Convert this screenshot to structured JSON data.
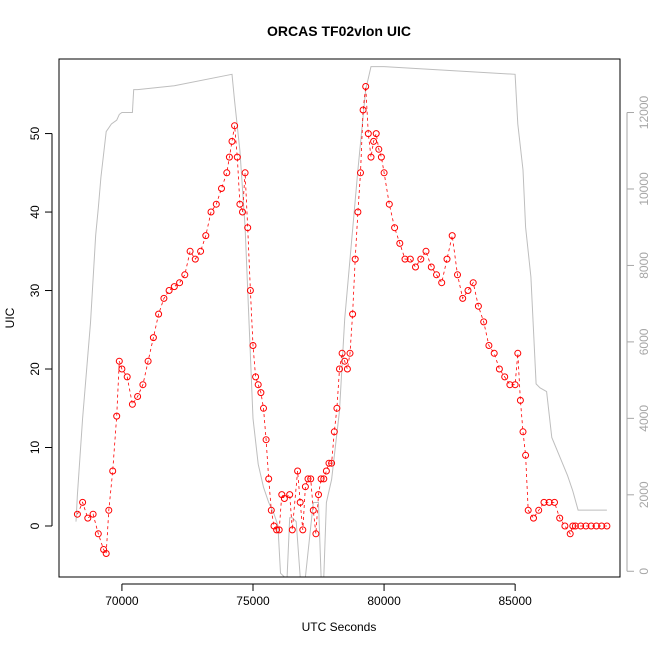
{
  "chart_data": {
    "type": "scatter",
    "title": "ORCAS TF02vlon UIC",
    "xlabel": "UTC Seconds",
    "ylabel": "UIC",
    "xlim": [
      67600,
      89000
    ],
    "ylim": [
      -6.5,
      59.5
    ],
    "y2lim": [
      -150,
      13400
    ],
    "x_ticks": [
      70000,
      75000,
      80000,
      85000
    ],
    "y_ticks": [
      0,
      10,
      20,
      30,
      40,
      50
    ],
    "y2_ticks": [
      0,
      2000,
      4000,
      6000,
      8000,
      10000,
      12000
    ],
    "colors": {
      "uic": "#ff0000",
      "altitude": "#bebebe",
      "axis": "#000000",
      "axis2": "#a6a6a6"
    },
    "series": [
      {
        "name": "",
        "role": "uic-scatter",
        "x": [
          68300,
          68500,
          68700,
          68900,
          69100,
          69300,
          69400,
          69500,
          69650,
          69800,
          69900,
          70000,
          70200,
          70400,
          70600,
          70800,
          71000,
          71200,
          71400,
          71600,
          71800,
          72000,
          72200,
          72400,
          72600,
          72800,
          73000,
          73200,
          73400,
          73600,
          73800,
          74000,
          74100,
          74200,
          74300,
          74400,
          74500,
          74600,
          74700,
          74800,
          74900,
          75000,
          75100,
          75200,
          75300,
          75400,
          75500,
          75600,
          75700,
          75800,
          75900,
          76000,
          76100,
          76200,
          76400,
          76500,
          76700,
          76800,
          76900,
          77000,
          77100,
          77200,
          77300,
          77400,
          77500,
          77600,
          77700,
          77800,
          77900,
          78000,
          78100,
          78200,
          78300,
          78400,
          78500,
          78600,
          78700,
          78800,
          78900,
          79000,
          79100,
          79200,
          79300,
          79400,
          79500,
          79600,
          79700,
          79800,
          79900,
          80000,
          80200,
          80400,
          80600,
          80800,
          81000,
          81200,
          81400,
          81600,
          81800,
          82000,
          82200,
          82400,
          82600,
          82800,
          83000,
          83200,
          83400,
          83600,
          83800,
          84000,
          84200,
          84400,
          84600,
          84800,
          85000,
          85100,
          85200,
          85300,
          85400,
          85500,
          85700,
          85900,
          86100,
          86300,
          86500,
          86700,
          86900,
          87100,
          87200,
          87300,
          87500,
          87700,
          87900,
          88100,
          88300,
          88500
        ],
        "y": [
          1.5,
          3,
          1,
          1.5,
          -1,
          -3,
          -3.5,
          2,
          7,
          14,
          21,
          20,
          19,
          15.5,
          16.5,
          18,
          21,
          24,
          27,
          29,
          30,
          30.5,
          31,
          32,
          35,
          34,
          35,
          37,
          40,
          41,
          43,
          45,
          47,
          49,
          51,
          47,
          41,
          40,
          45,
          38,
          30,
          23,
          19,
          18,
          17,
          15,
          11,
          6,
          2,
          0,
          -0.5,
          -0.5,
          4,
          3.5,
          4,
          -0.5,
          7,
          3,
          -0.5,
          5,
          6,
          6,
          2,
          -1,
          4,
          6,
          6,
          7,
          8,
          8,
          12,
          15,
          20,
          22,
          21,
          20,
          22,
          27,
          34,
          40,
          45,
          53,
          56,
          50,
          47,
          49,
          50,
          48,
          47,
          45,
          41,
          38,
          36,
          34,
          34,
          33,
          34,
          35,
          33,
          32,
          31,
          34,
          37,
          32,
          29,
          30,
          31,
          28,
          26,
          23,
          22,
          20,
          19,
          18,
          18,
          22,
          16,
          12,
          9,
          2,
          1,
          2,
          3,
          3,
          3,
          1,
          0,
          -1,
          0,
          0,
          0,
          0,
          0,
          0,
          0,
          0
        ]
      },
      {
        "name": "",
        "role": "altitude-line",
        "x": [
          68250,
          68300,
          68500,
          68800,
          69000,
          69100,
          69200,
          69400,
          69600,
          69800,
          69900,
          70000,
          70100,
          70200,
          70400,
          70450,
          70600,
          72000,
          74200,
          74300,
          74500,
          74700,
          75000,
          75200,
          75400,
          75600,
          75800,
          75950,
          76050,
          76200,
          76300,
          76400,
          76500,
          76650,
          76800,
          77000,
          77300,
          77500,
          77600,
          77700,
          77800,
          78000,
          78300,
          78500,
          79000,
          79300,
          79500,
          80000,
          85000,
          85100,
          85300,
          85400,
          85600,
          85800,
          85950,
          86200,
          86400,
          86700,
          87000,
          87200,
          87400,
          87800,
          88200,
          88500
        ],
        "y2": [
          1300,
          2000,
          4000,
          6500,
          8800,
          9500,
          10300,
          11500,
          11700,
          11800,
          11950,
          12000,
          12000,
          12000,
          12000,
          12600,
          12600,
          12700,
          13000,
          12300,
          11000,
          9000,
          4000,
          2800,
          2200,
          1800,
          1500,
          1200,
          -50,
          -150,
          -150,
          1400,
          1400,
          1300,
          -150,
          -150,
          1800,
          1800,
          -150,
          -150,
          1800,
          2400,
          4200,
          6600,
          10500,
          12600,
          13200,
          13200,
          13000,
          11700,
          10500,
          9000,
          7700,
          4900,
          4800,
          4700,
          3500,
          3000,
          2500,
          2100,
          1600,
          1600,
          1600,
          1600
        ]
      }
    ]
  }
}
